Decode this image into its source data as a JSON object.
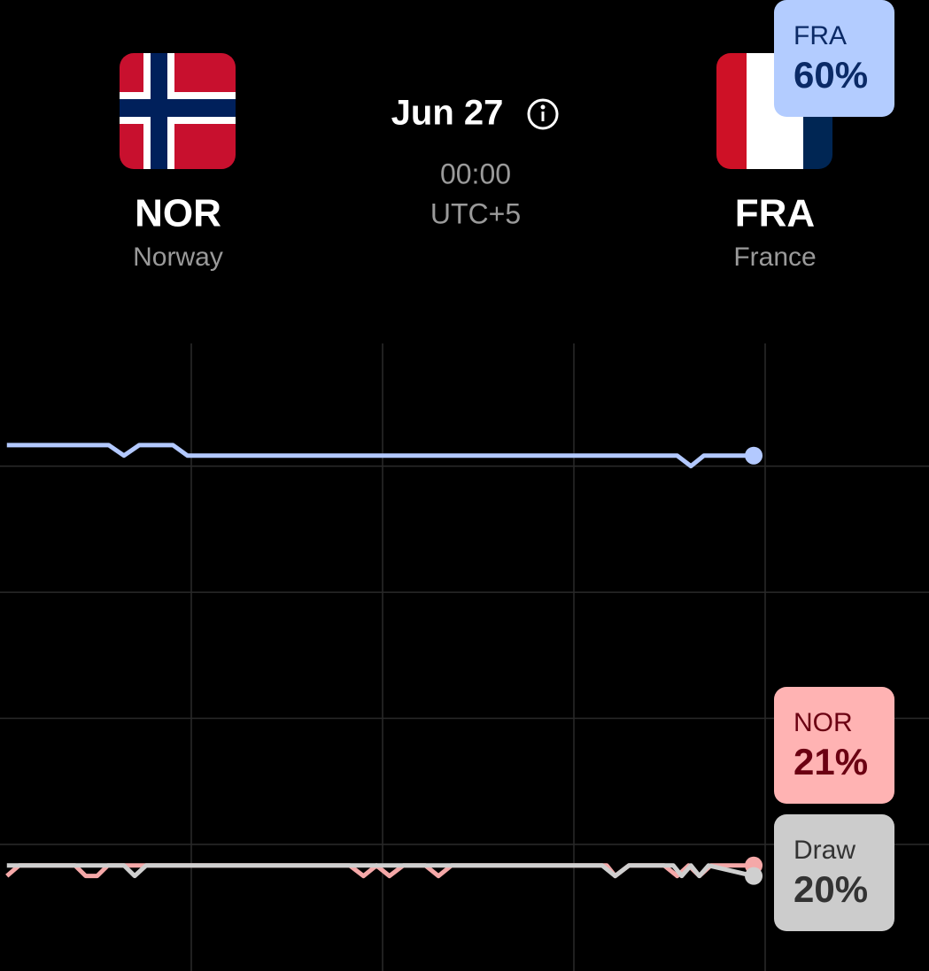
{
  "header": {
    "home": {
      "code": "NOR",
      "name": "Norway"
    },
    "away": {
      "code": "FRA",
      "name": "France"
    },
    "date": "Jun 27",
    "time": "00:00",
    "timezone": "UTC+5"
  },
  "chart_data": {
    "type": "line",
    "xlim": [
      0,
      100
    ],
    "xticks": [
      25,
      50,
      75,
      100
    ],
    "ylim": [
      15,
      70
    ],
    "yticks": [
      23,
      35,
      47,
      59
    ],
    "grid": true,
    "series": [
      {
        "name": "FRA",
        "color": "#b3c9ff",
        "label_color": "#b3ccff",
        "label_text_color": "#0b2a66",
        "x": [
          0.9,
          14.2,
          16.2,
          18.2,
          22.6,
          24.5,
          88.5,
          90.3,
          92.0,
          98.5
        ],
        "values": [
          61,
          61,
          60,
          61,
          61,
          60,
          60,
          59,
          60,
          60
        ],
        "value_labels": [
          null,
          null,
          null,
          null,
          null,
          null,
          null,
          null,
          null,
          "60%"
        ]
      },
      {
        "name": "NOR",
        "color": "#f5a8a8",
        "label_color": "#ffb3b3",
        "label_text_color": "#6b0012",
        "x": [
          0.9,
          2.5,
          9.8,
          11.2,
          12.7,
          14.1,
          45.7,
          47.5,
          49.2,
          50.9,
          52.7,
          55.6,
          57.3,
          59.0,
          79.3,
          80.4,
          82.2,
          86.8,
          88.5,
          90.0,
          91.4,
          92.9,
          98.5
        ],
        "values": [
          20,
          21,
          21,
          20,
          20,
          21,
          21,
          20,
          21,
          20,
          21,
          21,
          20,
          21,
          21,
          20,
          21,
          21,
          20,
          21,
          20,
          21,
          21
        ],
        "value_labels": [
          null,
          null,
          null,
          null,
          null,
          null,
          null,
          null,
          null,
          null,
          null,
          null,
          null,
          null,
          null,
          null,
          null,
          null,
          null,
          null,
          null,
          null,
          "21%"
        ]
      },
      {
        "name": "Draw",
        "color": "#cfcfcf",
        "label_color": "#cccccc",
        "label_text_color": "#333333",
        "x": [
          0.9,
          16.2,
          17.6,
          19.1,
          78.7,
          80.4,
          82.2,
          88.0,
          89.1,
          90.3,
          91.4,
          92.6,
          98.5
        ],
        "values": [
          21,
          21,
          20,
          21,
          21,
          20,
          21,
          21,
          20,
          21,
          20,
          21,
          20
        ],
        "value_labels": [
          null,
          null,
          null,
          null,
          null,
          null,
          null,
          null,
          null,
          null,
          null,
          null,
          "20%"
        ]
      }
    ]
  }
}
